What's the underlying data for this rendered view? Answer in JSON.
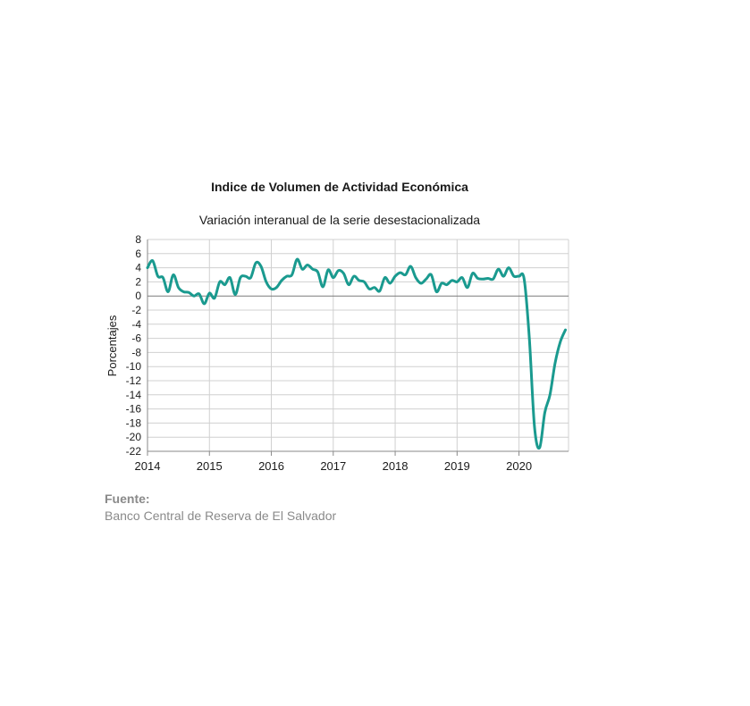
{
  "chart_data": {
    "type": "line",
    "title": "Indice de Volumen de  Actividad Económica",
    "subtitle": "Variación interanual de la serie desestacionalizada",
    "ylabel": "Porcentajes",
    "xlabel": "",
    "ylim": [
      -22,
      8
    ],
    "yticks": [
      8,
      6,
      4,
      2,
      0,
      -2,
      -4,
      -6,
      -8,
      -10,
      -12,
      -14,
      -16,
      -18,
      -20,
      -22
    ],
    "xlim": [
      2014,
      2020.8
    ],
    "xticks": [
      2014,
      2015,
      2016,
      2017,
      2018,
      2019,
      2020
    ],
    "grid": true,
    "line_color": "#1a9a8f",
    "series": [
      {
        "name": "",
        "x": [
          2014.0,
          2014.083,
          2014.167,
          2014.25,
          2014.333,
          2014.417,
          2014.5,
          2014.583,
          2014.667,
          2014.75,
          2014.833,
          2014.917,
          2015.0,
          2015.083,
          2015.167,
          2015.25,
          2015.333,
          2015.417,
          2015.5,
          2015.583,
          2015.667,
          2015.75,
          2015.833,
          2015.917,
          2016.0,
          2016.083,
          2016.167,
          2016.25,
          2016.333,
          2016.417,
          2016.5,
          2016.583,
          2016.667,
          2016.75,
          2016.833,
          2016.917,
          2017.0,
          2017.083,
          2017.167,
          2017.25,
          2017.333,
          2017.417,
          2017.5,
          2017.583,
          2017.667,
          2017.75,
          2017.833,
          2017.917,
          2018.0,
          2018.083,
          2018.167,
          2018.25,
          2018.333,
          2018.417,
          2018.5,
          2018.583,
          2018.667,
          2018.75,
          2018.833,
          2018.917,
          2019.0,
          2019.083,
          2019.167,
          2019.25,
          2019.333,
          2019.417,
          2019.5,
          2019.583,
          2019.667,
          2019.75,
          2019.833,
          2019.917,
          2020.0,
          2020.083,
          2020.167,
          2020.25,
          2020.333,
          2020.417,
          2020.5,
          2020.583,
          2020.667,
          2020.75
        ],
        "y": [
          4.0,
          5.0,
          2.8,
          2.6,
          0.6,
          3.0,
          1.2,
          0.6,
          0.5,
          0.0,
          0.3,
          -1.1,
          0.4,
          -0.3,
          2.0,
          1.6,
          2.6,
          0.2,
          2.6,
          2.8,
          2.6,
          4.7,
          4.2,
          2.0,
          1.0,
          1.2,
          2.2,
          2.8,
          3.0,
          5.2,
          3.8,
          4.4,
          3.8,
          3.4,
          1.3,
          3.7,
          2.6,
          3.6,
          3.2,
          1.6,
          2.8,
          2.2,
          2.0,
          1.0,
          1.2,
          0.7,
          2.6,
          1.8,
          2.8,
          3.3,
          3.0,
          4.2,
          2.6,
          1.8,
          2.4,
          3.0,
          0.6,
          1.8,
          1.6,
          2.2,
          2.0,
          2.6,
          1.2,
          3.2,
          2.5,
          2.4,
          2.5,
          2.4,
          3.8,
          2.8,
          4.0,
          2.8,
          2.8,
          2.4,
          -6.0,
          -18.5,
          -21.5,
          -16.5,
          -14.0,
          -9.5,
          -6.5,
          -4.8
        ]
      }
    ]
  },
  "footer": {
    "source_label": "Fuente:",
    "source_text": "Banco Central de Reserva de El Salvador"
  }
}
